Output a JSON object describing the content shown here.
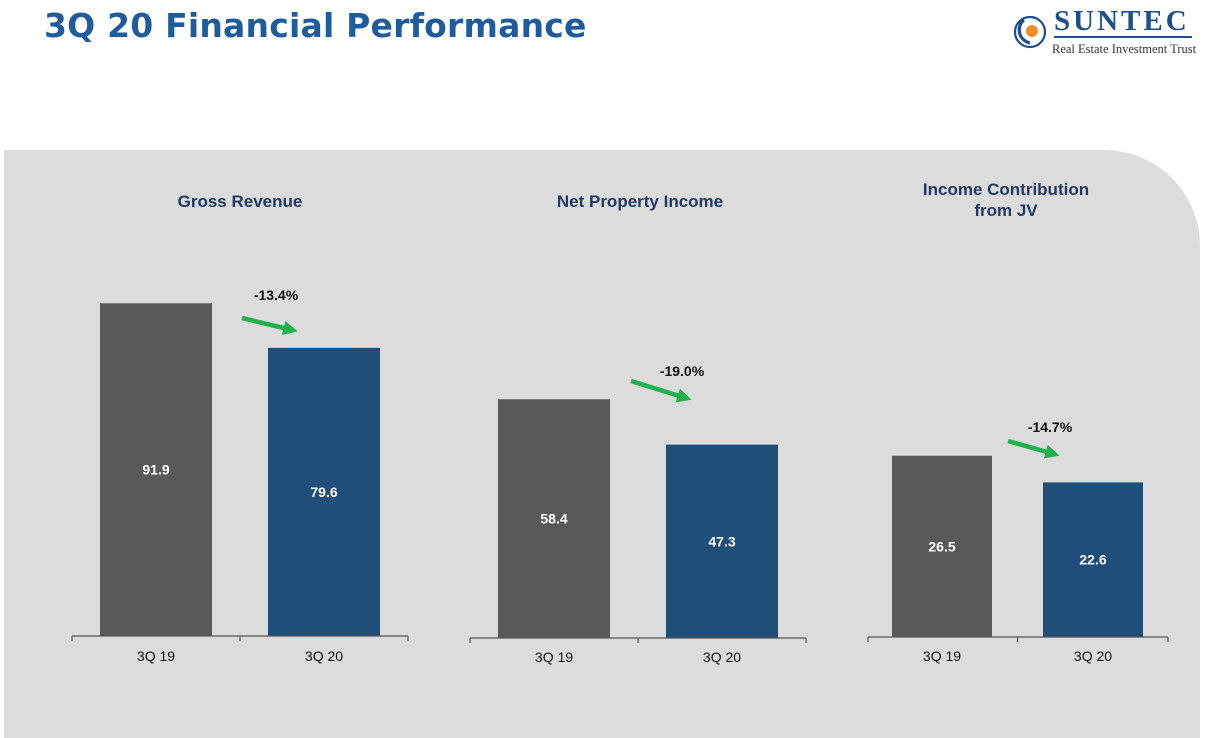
{
  "page": {
    "title": "3Q 20 Financial Performance"
  },
  "logo": {
    "name": "SUNTEC",
    "subtitle": "Real Estate Investment Trust",
    "colors": {
      "navy": "#1f4e8c",
      "orange": "#f28c28"
    }
  },
  "colors": {
    "title": "#1f5c9e",
    "bar_prior": "#595959",
    "bar_current": "#1f4e79",
    "arrow": "#1fb14a",
    "chart_title": "#1f3864",
    "panel": "#dcdcdc"
  },
  "chart_data": [
    {
      "type": "bar",
      "title": [
        "Gross Revenue"
      ],
      "categories": [
        "3Q 19",
        "3Q 20"
      ],
      "values": [
        91.9,
        79.6
      ],
      "value_labels": [
        "91.9",
        "79.6"
      ],
      "change_label": "-13.4%",
      "ylim": [
        0,
        100
      ],
      "xlabel": "",
      "ylabel": ""
    },
    {
      "type": "bar",
      "title": [
        "Net Property Income"
      ],
      "categories": [
        "3Q 19",
        "3Q 20"
      ],
      "values": [
        58.4,
        47.3
      ],
      "value_labels": [
        "58.4",
        "47.3"
      ],
      "change_label": "-19.0%",
      "ylim": [
        0,
        68
      ],
      "xlabel": "",
      "ylabel": ""
    },
    {
      "type": "bar",
      "title": [
        "Income Contribution",
        "from JV"
      ],
      "categories": [
        "3Q 19",
        "3Q 20"
      ],
      "values": [
        26.5,
        22.6
      ],
      "value_labels": [
        "26.5",
        "22.6"
      ],
      "change_label": "-14.7%",
      "ylim": [
        0,
        34.5
      ],
      "xlabel": "",
      "ylabel": ""
    }
  ]
}
